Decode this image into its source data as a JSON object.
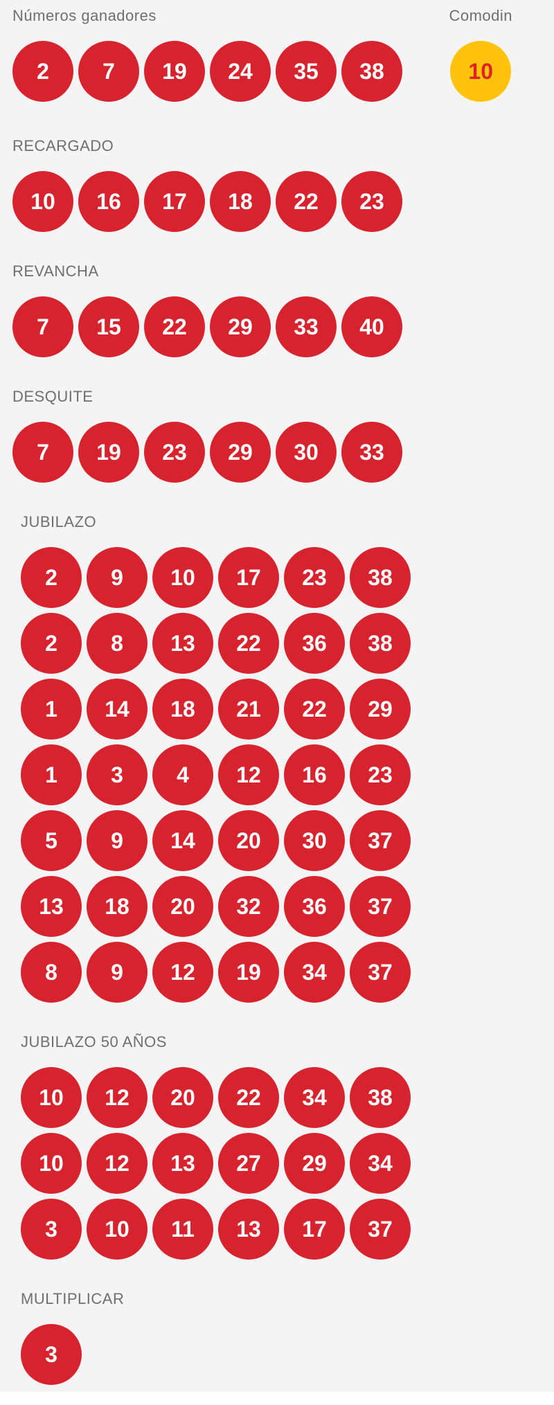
{
  "colors": {
    "background": "#f4f4f4",
    "ball_red": "#d7232d",
    "ball_text": "#ffffff",
    "comodin_yellow": "#ffc30b",
    "comodin_text": "#df2228",
    "label_gray": "#6f6f6f",
    "footer_strip": "#ffffff"
  },
  "sections": [
    {
      "id": "numeros-ganadores",
      "label": "Números ganadores",
      "rows": [
        [
          2,
          7,
          19,
          24,
          35,
          38
        ]
      ]
    },
    {
      "id": "comodin",
      "label": "Comodin",
      "value": 10
    },
    {
      "id": "recargado",
      "label": "RECARGADO",
      "rows": [
        [
          10,
          16,
          17,
          18,
          22,
          23
        ]
      ]
    },
    {
      "id": "revancha",
      "label": "REVANCHA",
      "rows": [
        [
          7,
          15,
          22,
          29,
          33,
          40
        ]
      ]
    },
    {
      "id": "desquite",
      "label": "DESQUITE",
      "rows": [
        [
          7,
          19,
          23,
          29,
          30,
          33
        ]
      ]
    },
    {
      "id": "jubilazo",
      "label": "JUBILAZO",
      "rows": [
        [
          2,
          9,
          10,
          17,
          23,
          38
        ],
        [
          2,
          8,
          13,
          22,
          36,
          38
        ],
        [
          1,
          14,
          18,
          21,
          22,
          29
        ],
        [
          1,
          3,
          4,
          12,
          16,
          23
        ],
        [
          5,
          9,
          14,
          20,
          30,
          37
        ],
        [
          13,
          18,
          20,
          32,
          36,
          37
        ],
        [
          8,
          9,
          12,
          19,
          34,
          37
        ]
      ]
    },
    {
      "id": "jubilazo-50-anos",
      "label": "JUBILAZO 50 AÑOS",
      "rows": [
        [
          10,
          12,
          20,
          22,
          34,
          38
        ],
        [
          10,
          12,
          13,
          27,
          29,
          34
        ],
        [
          3,
          10,
          11,
          13,
          17,
          37
        ]
      ]
    },
    {
      "id": "multiplicar",
      "label": "MULTIPLICAR",
      "rows": [
        [
          3
        ]
      ]
    }
  ]
}
